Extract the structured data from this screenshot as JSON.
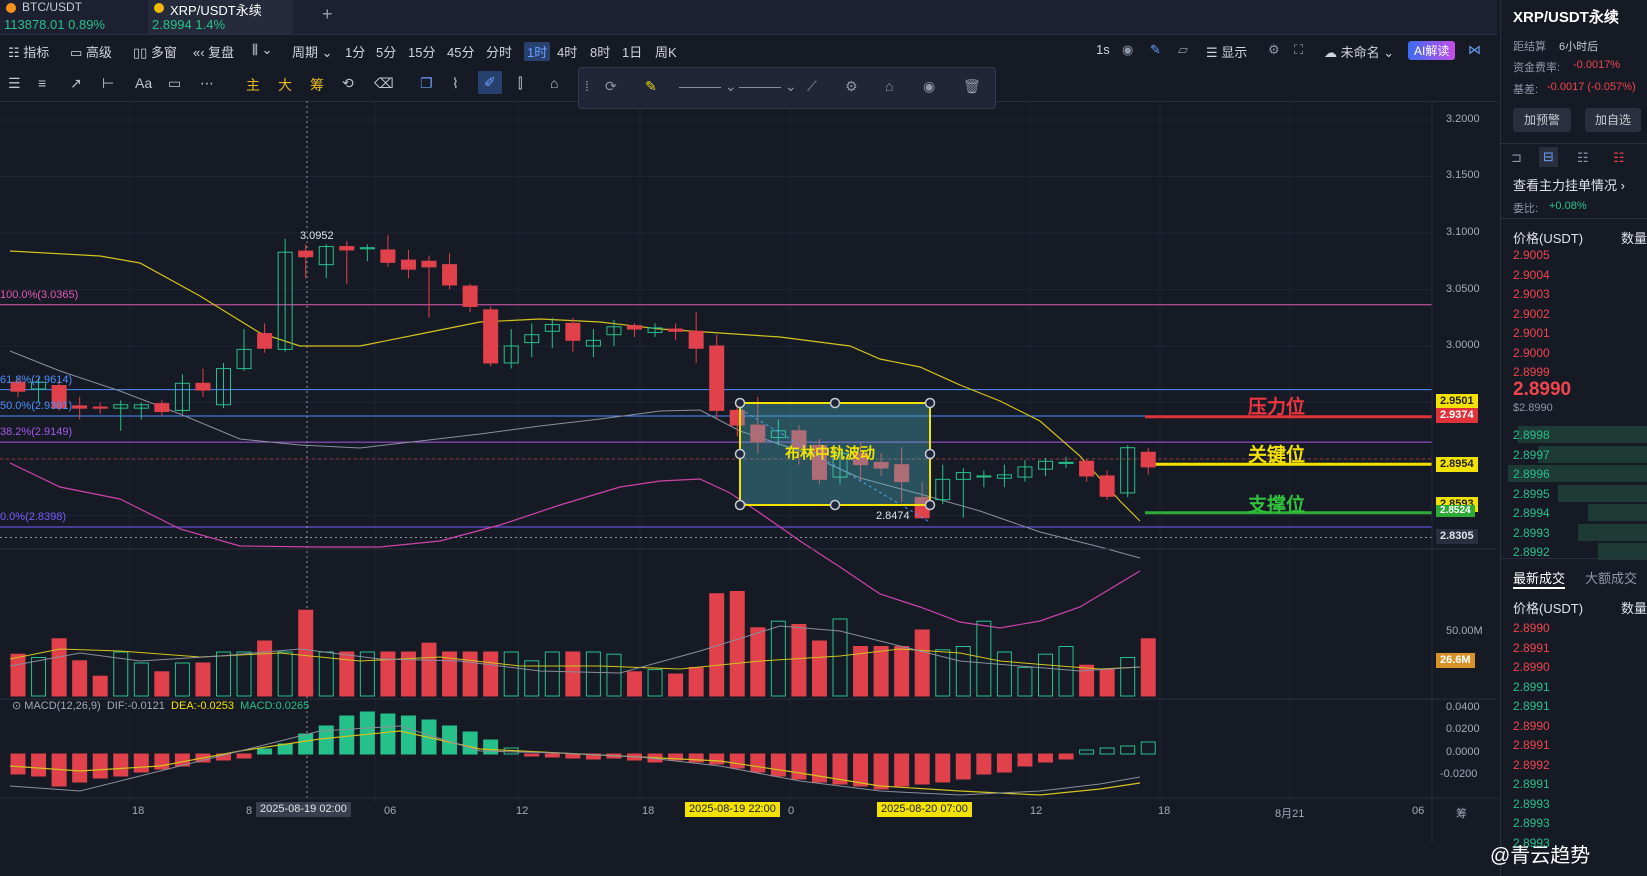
{
  "tabs": [
    {
      "symbol": "BTC/USDT",
      "price": "113878.01",
      "change": "0.89%"
    },
    {
      "symbol": "XRP/USDT永续",
      "price": "2.8994",
      "change": "1.4%"
    }
  ],
  "add_tab": "+",
  "toolbar": {
    "indicator": "指标",
    "advanced": "高级",
    "multi_window": "多窗",
    "replay": "复盘",
    "period": "周期",
    "intervals": [
      "1分",
      "5分",
      "15分",
      "45分",
      "分时",
      "1时",
      "4时",
      "8时",
      "1日",
      "周K"
    ],
    "active_interval": "1时",
    "refresh": "1s",
    "display": "显示",
    "unnamed": "未命名",
    "ai": "AI解读"
  },
  "drawing_tools": {
    "main": "主",
    "big": "大",
    "chip": "筹",
    "font": "Aa"
  },
  "chart": {
    "price_axis": [
      "3.2000",
      "3.1500",
      "3.1000",
      "3.0500",
      "3.0000",
      "2.9501",
      "2.9374",
      "2.8954",
      "2.8593",
      "2.8524",
      "2.8305"
    ],
    "fib_levels": [
      "100.0%(3.0365)",
      "61.8%(2.9614)",
      "50.0%(2.9381)",
      "38.2%(2.9149)",
      "0.0%(2.8398)"
    ],
    "high_label": "3.0952",
    "low_label": "2.8474",
    "box_label": "布林中轨波动",
    "resistance": "压力位",
    "key_level": "关键位",
    "support": "支撑位",
    "volume_axis": [
      "50.00M",
      "26.6M"
    ],
    "macd_header": {
      "name": "MACD(12,26,9)",
      "dif": "DIF:-0.0121",
      "dea": "DEA:-0.0253",
      "macd": "MACD:0.0265"
    },
    "macd_axis": [
      "0.0400",
      "0.0200",
      "0.0000",
      "-0.0200"
    ],
    "time_axis": [
      "18",
      "8",
      "06",
      "12",
      "18",
      "0",
      "12",
      "18",
      "8月21",
      "06"
    ],
    "time_tags": [
      "2025-08-19 02:00",
      "2025-08-19 22:00",
      "2025-08-20 07:00"
    ],
    "chip_label": "筹"
  },
  "right_panel": {
    "title": "XRP/USDT永续",
    "settle_label": "距结算",
    "settle_value": "6小时后",
    "funding_label": "资金费率:",
    "funding_value": "-0.0017%",
    "basis_label": "基差:",
    "basis_value": "-0.0017 (-0.057%)",
    "alert_btn": "加预警",
    "watch_btn": "加自选",
    "orders_link": "查看主力挂单情况",
    "ratio_label": "委比:",
    "ratio_value": "+0.08%",
    "price_header": "价格(USDT)",
    "qty_header": "数量",
    "asks": [
      "2.9005",
      "2.9004",
      "2.9003",
      "2.9002",
      "2.9001",
      "2.9000",
      "2.8999"
    ],
    "last_price": "2.8990",
    "last_price_sub": "$2.8990",
    "bids": [
      "2.8998",
      "2.8997",
      "2.8996",
      "2.8995",
      "2.8994",
      "2.8993",
      "2.8992"
    ],
    "trades_tab": "最新成交",
    "big_trades_tab": "大额成交",
    "trades": [
      {
        "p": "2.8990",
        "c": "red"
      },
      {
        "p": "2.8991",
        "c": "red"
      },
      {
        "p": "2.8990",
        "c": "red"
      },
      {
        "p": "2.8991",
        "c": "green"
      },
      {
        "p": "2.8991",
        "c": "green"
      },
      {
        "p": "2.8990",
        "c": "red"
      },
      {
        "p": "2.8991",
        "c": "red"
      },
      {
        "p": "2.8992",
        "c": "red"
      },
      {
        "p": "2.8991",
        "c": "green"
      },
      {
        "p": "2.8993",
        "c": "green"
      },
      {
        "p": "2.8993",
        "c": "green"
      },
      {
        "p": "2.8993",
        "c": "green"
      }
    ]
  },
  "watermark": "@青云趋势",
  "colors": {
    "up": "#26c08a",
    "down": "#e0414b",
    "bg": "#161a25",
    "accent": "#6aa0ff"
  }
}
